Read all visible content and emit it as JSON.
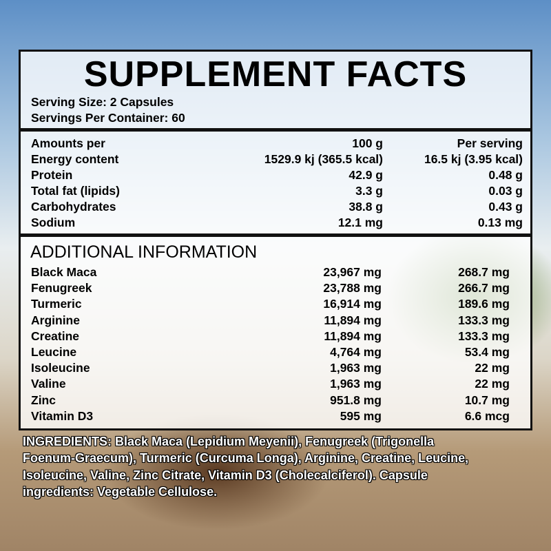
{
  "title": "SUPPLEMENT FACTS",
  "serving": [
    "Serving Size: 2 Capsules",
    "Servings Per Container: 60"
  ],
  "nutrition": {
    "header": [
      "Amounts per",
      "100 g",
      "Per serving"
    ],
    "rows": [
      [
        "Energy content",
        "1529.9 kj (365.5 kcal)",
        "16.5 kj (3.95 kcal)"
      ],
      [
        "Protein",
        "42.9 g",
        "0.48 g"
      ],
      [
        "Total fat (lipids)",
        "3.3 g",
        "0.03 g"
      ],
      [
        "Carbohydrates",
        "38.8 g",
        "0.43 g"
      ],
      [
        "Sodium",
        "12.1 mg",
        "0.13 mg"
      ]
    ]
  },
  "additional": {
    "title": "ADDITIONAL INFORMATION",
    "rows": [
      [
        "Black Maca",
        "23,967 mg",
        "268.7 mg"
      ],
      [
        "Fenugreek",
        "23,788 mg",
        "266.7 mg"
      ],
      [
        "Turmeric",
        "16,914 mg",
        "189.6 mg"
      ],
      [
        "Arginine",
        "11,894 mg",
        "133.3 mg"
      ],
      [
        "Creatine",
        "11,894 mg",
        "133.3 mg"
      ],
      [
        "Leucine",
        "4,764 mg",
        "53.4 mg"
      ],
      [
        "Isoleucine",
        "1,963 mg",
        "22 mg"
      ],
      [
        "Valine",
        "1,963 mg",
        "22 mg"
      ],
      [
        "Zinc",
        "951.8 mg",
        "10.7 mg"
      ],
      [
        "Vitamin D3",
        "595 mg",
        "6.6 mcg"
      ]
    ]
  },
  "ingredients": [
    "INGREDIENTS: Black Maca (Lepidium Meyenii), Fenugreek (Trigonella",
    "Foenum-Graecum), Turmeric (Curcuma Longa), Arginine, Creatine, Leucine,",
    "Isoleucine, Valine, Zinc Citrate, Vitamin D3 (Cholecalciferol). Capsule",
    "ingredients: Vegetable Cellulose."
  ]
}
